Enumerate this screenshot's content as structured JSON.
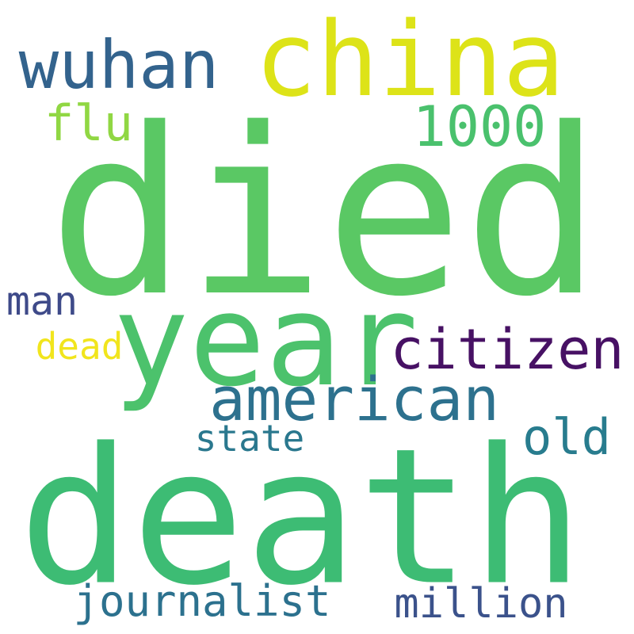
{
  "words": [
    {
      "text": "died",
      "color": "#5ac864"
    },
    {
      "text": "death",
      "color": "#3dbc74"
    },
    {
      "text": "china",
      "color": "#dde318"
    },
    {
      "text": "year",
      "color": "#4cc26c"
    },
    {
      "text": "wuhan",
      "color": "#33638d"
    },
    {
      "text": "american",
      "color": "#2d718e"
    },
    {
      "text": "citizen",
      "color": "#471164"
    },
    {
      "text": "1000",
      "color": "#4ac16d"
    },
    {
      "text": "flu",
      "color": "#90d743"
    },
    {
      "text": "old",
      "color": "#287c8e"
    },
    {
      "text": "journalist",
      "color": "#2c718e"
    },
    {
      "text": "million",
      "color": "#3b528b"
    },
    {
      "text": "man",
      "color": "#3e4a89"
    },
    {
      "text": "state",
      "color": "#2a788e"
    },
    {
      "text": "dead",
      "color": "#f1e51d"
    }
  ]
}
